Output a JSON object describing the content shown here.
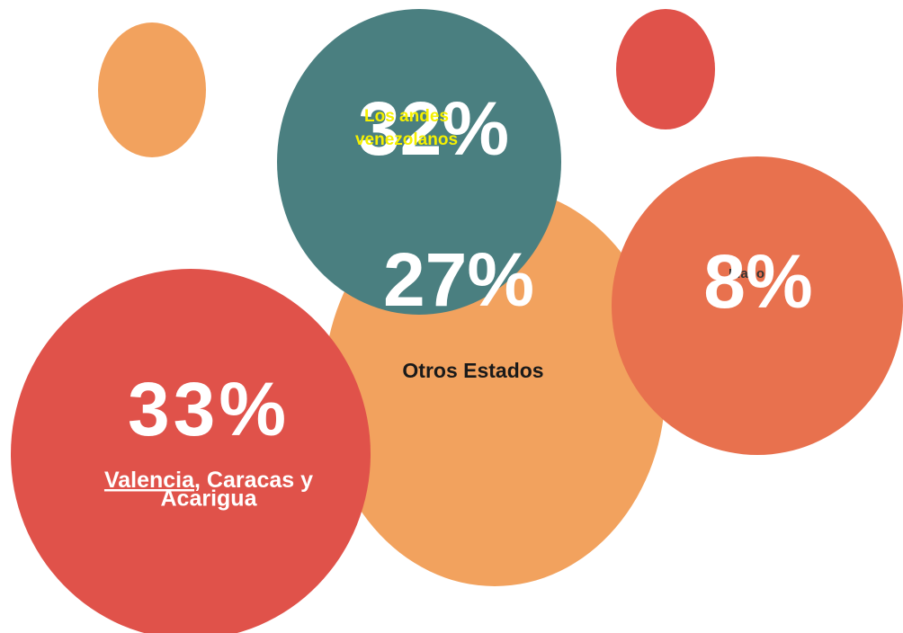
{
  "bubbles": [
    {
      "value": "32%",
      "label_lines": [
        "Los andes",
        "venezolanos"
      ]
    },
    {
      "value": "27%",
      "label": "Otros Estados"
    },
    {
      "value": "8%",
      "label": "Llano"
    },
    {
      "value": "33%",
      "label_underlined": "Valencia",
      "label_rest": ", Caracas y",
      "label_line2": "Acarigua"
    }
  ]
}
